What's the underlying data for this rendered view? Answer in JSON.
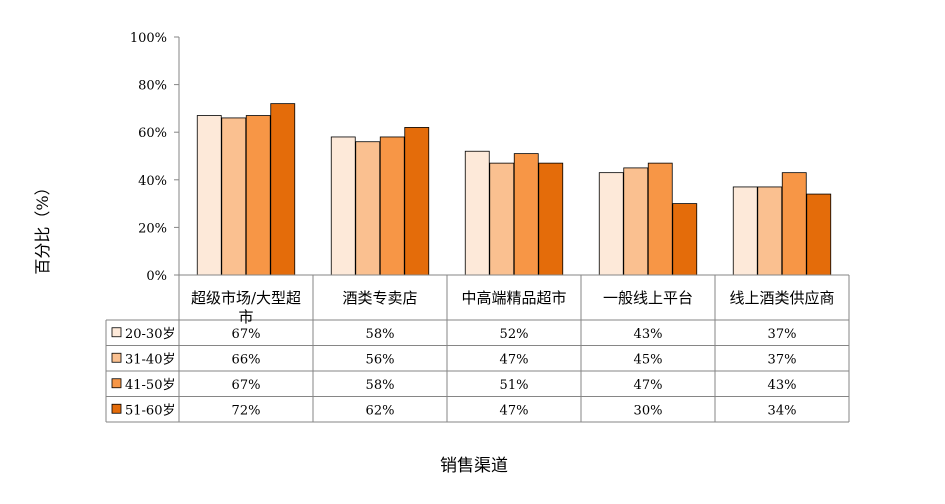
{
  "chart_data": {
    "type": "bar",
    "xlabel": "销售渠道",
    "ylabel": "百分比（%）",
    "ylim": [
      0,
      100
    ],
    "yticks": [
      0,
      20,
      40,
      60,
      80,
      100
    ],
    "ytick_labels": [
      "0%",
      "20%",
      "40%",
      "60%",
      "80%",
      "100%"
    ],
    "grid": false,
    "legend": "data-table-left",
    "categories": [
      "超级市场/大型超市",
      "酒类专卖店",
      "中高端精品超市",
      "一般线上平台",
      "线上酒类供应商"
    ],
    "series": [
      {
        "name": "20-30岁",
        "color": "#fde9d9",
        "values": [
          67,
          58,
          52,
          43,
          37
        ],
        "labels": [
          "67%",
          "58%",
          "52%",
          "43%",
          "37%"
        ]
      },
      {
        "name": "31-40岁",
        "color": "#fac090",
        "values": [
          66,
          56,
          47,
          45,
          37
        ],
        "labels": [
          "66%",
          "56%",
          "47%",
          "45%",
          "37%"
        ]
      },
      {
        "name": "41-50岁",
        "color": "#f79646",
        "values": [
          67,
          58,
          51,
          47,
          43
        ],
        "labels": [
          "67%",
          "58%",
          "51%",
          "47%",
          "43%"
        ]
      },
      {
        "name": "51-60岁",
        "color": "#e46c0a",
        "values": [
          72,
          62,
          47,
          30,
          34
        ],
        "labels": [
          "72%",
          "62%",
          "47%",
          "30%",
          "34%"
        ]
      }
    ]
  }
}
